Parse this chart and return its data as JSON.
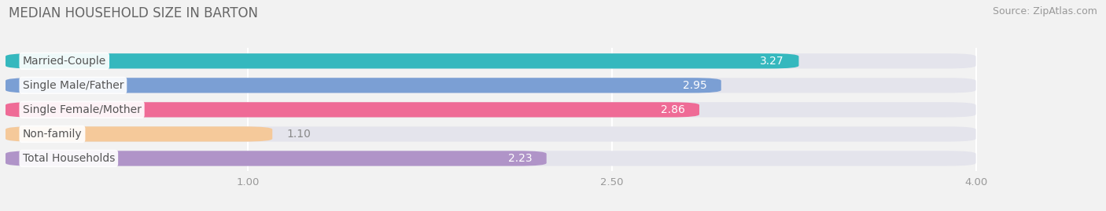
{
  "title": "MEDIAN HOUSEHOLD SIZE IN BARTON",
  "source": "Source: ZipAtlas.com",
  "categories": [
    "Married-Couple",
    "Single Male/Father",
    "Single Female/Mother",
    "Non-family",
    "Total Households"
  ],
  "values": [
    3.27,
    2.95,
    2.86,
    1.1,
    2.23
  ],
  "bar_colors": [
    "#35b8be",
    "#7b9fd4",
    "#ef6b96",
    "#f5c99a",
    "#b094c8"
  ],
  "background_color": "#f2f2f2",
  "bar_bg_color": "#e4e4ec",
  "xlim_min": 0.0,
  "xlim_max": 4.5,
  "data_min": 0.0,
  "data_max": 4.0,
  "xticks": [
    1.0,
    2.5,
    4.0
  ],
  "label_color": "#555555",
  "value_color_inside": "#ffffff",
  "value_color_outside": "#888888",
  "title_fontsize": 12,
  "source_fontsize": 9,
  "tick_fontsize": 9.5,
  "bar_label_fontsize": 10,
  "value_label_fontsize": 10
}
